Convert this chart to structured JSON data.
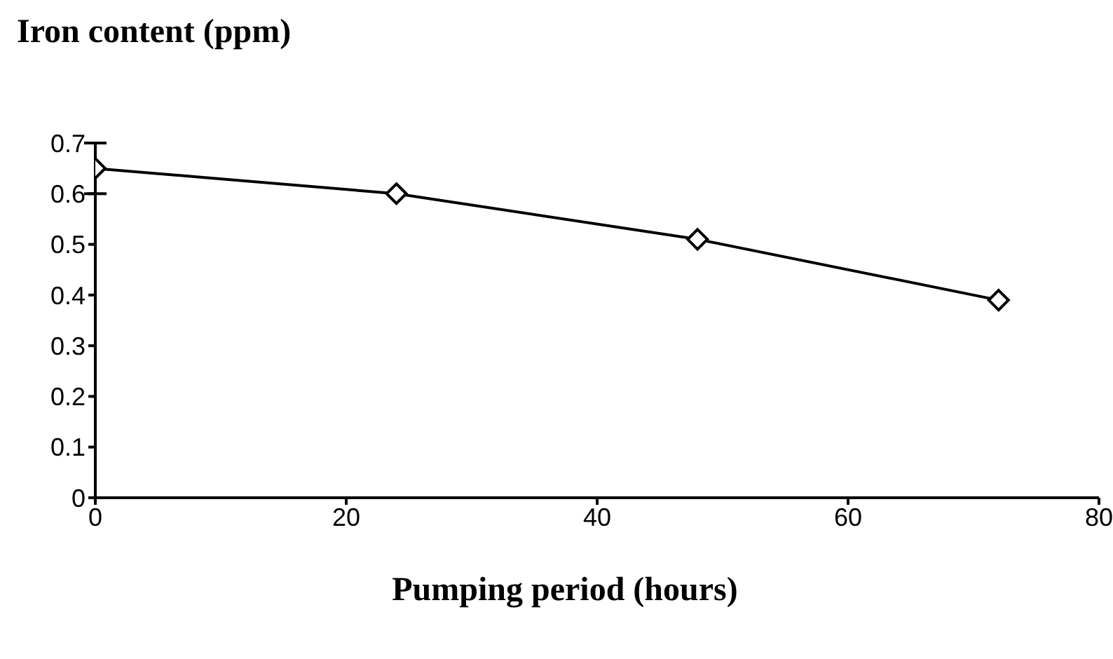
{
  "chart_data": {
    "type": "line",
    "ylabel": "Iron content (ppm)",
    "xlabel": "Pumping period (hours)",
    "x": [
      0,
      24,
      48,
      72
    ],
    "series": [
      {
        "color": "#000000",
        "values": [
          0.65,
          0.6,
          0.51,
          0.39
        ],
        "errors": [
          0.05,
          null,
          null,
          null
        ]
      }
    ],
    "xlim": [
      0,
      80
    ],
    "xticks": [
      0,
      20,
      40,
      60,
      80
    ],
    "ylim": [
      0,
      0.7
    ],
    "yticks": [
      0,
      0.1,
      0.2,
      0.3,
      0.4,
      0.5,
      0.6,
      0.7
    ],
    "grid": false,
    "marker": "diamond",
    "line_style": "solid"
  }
}
